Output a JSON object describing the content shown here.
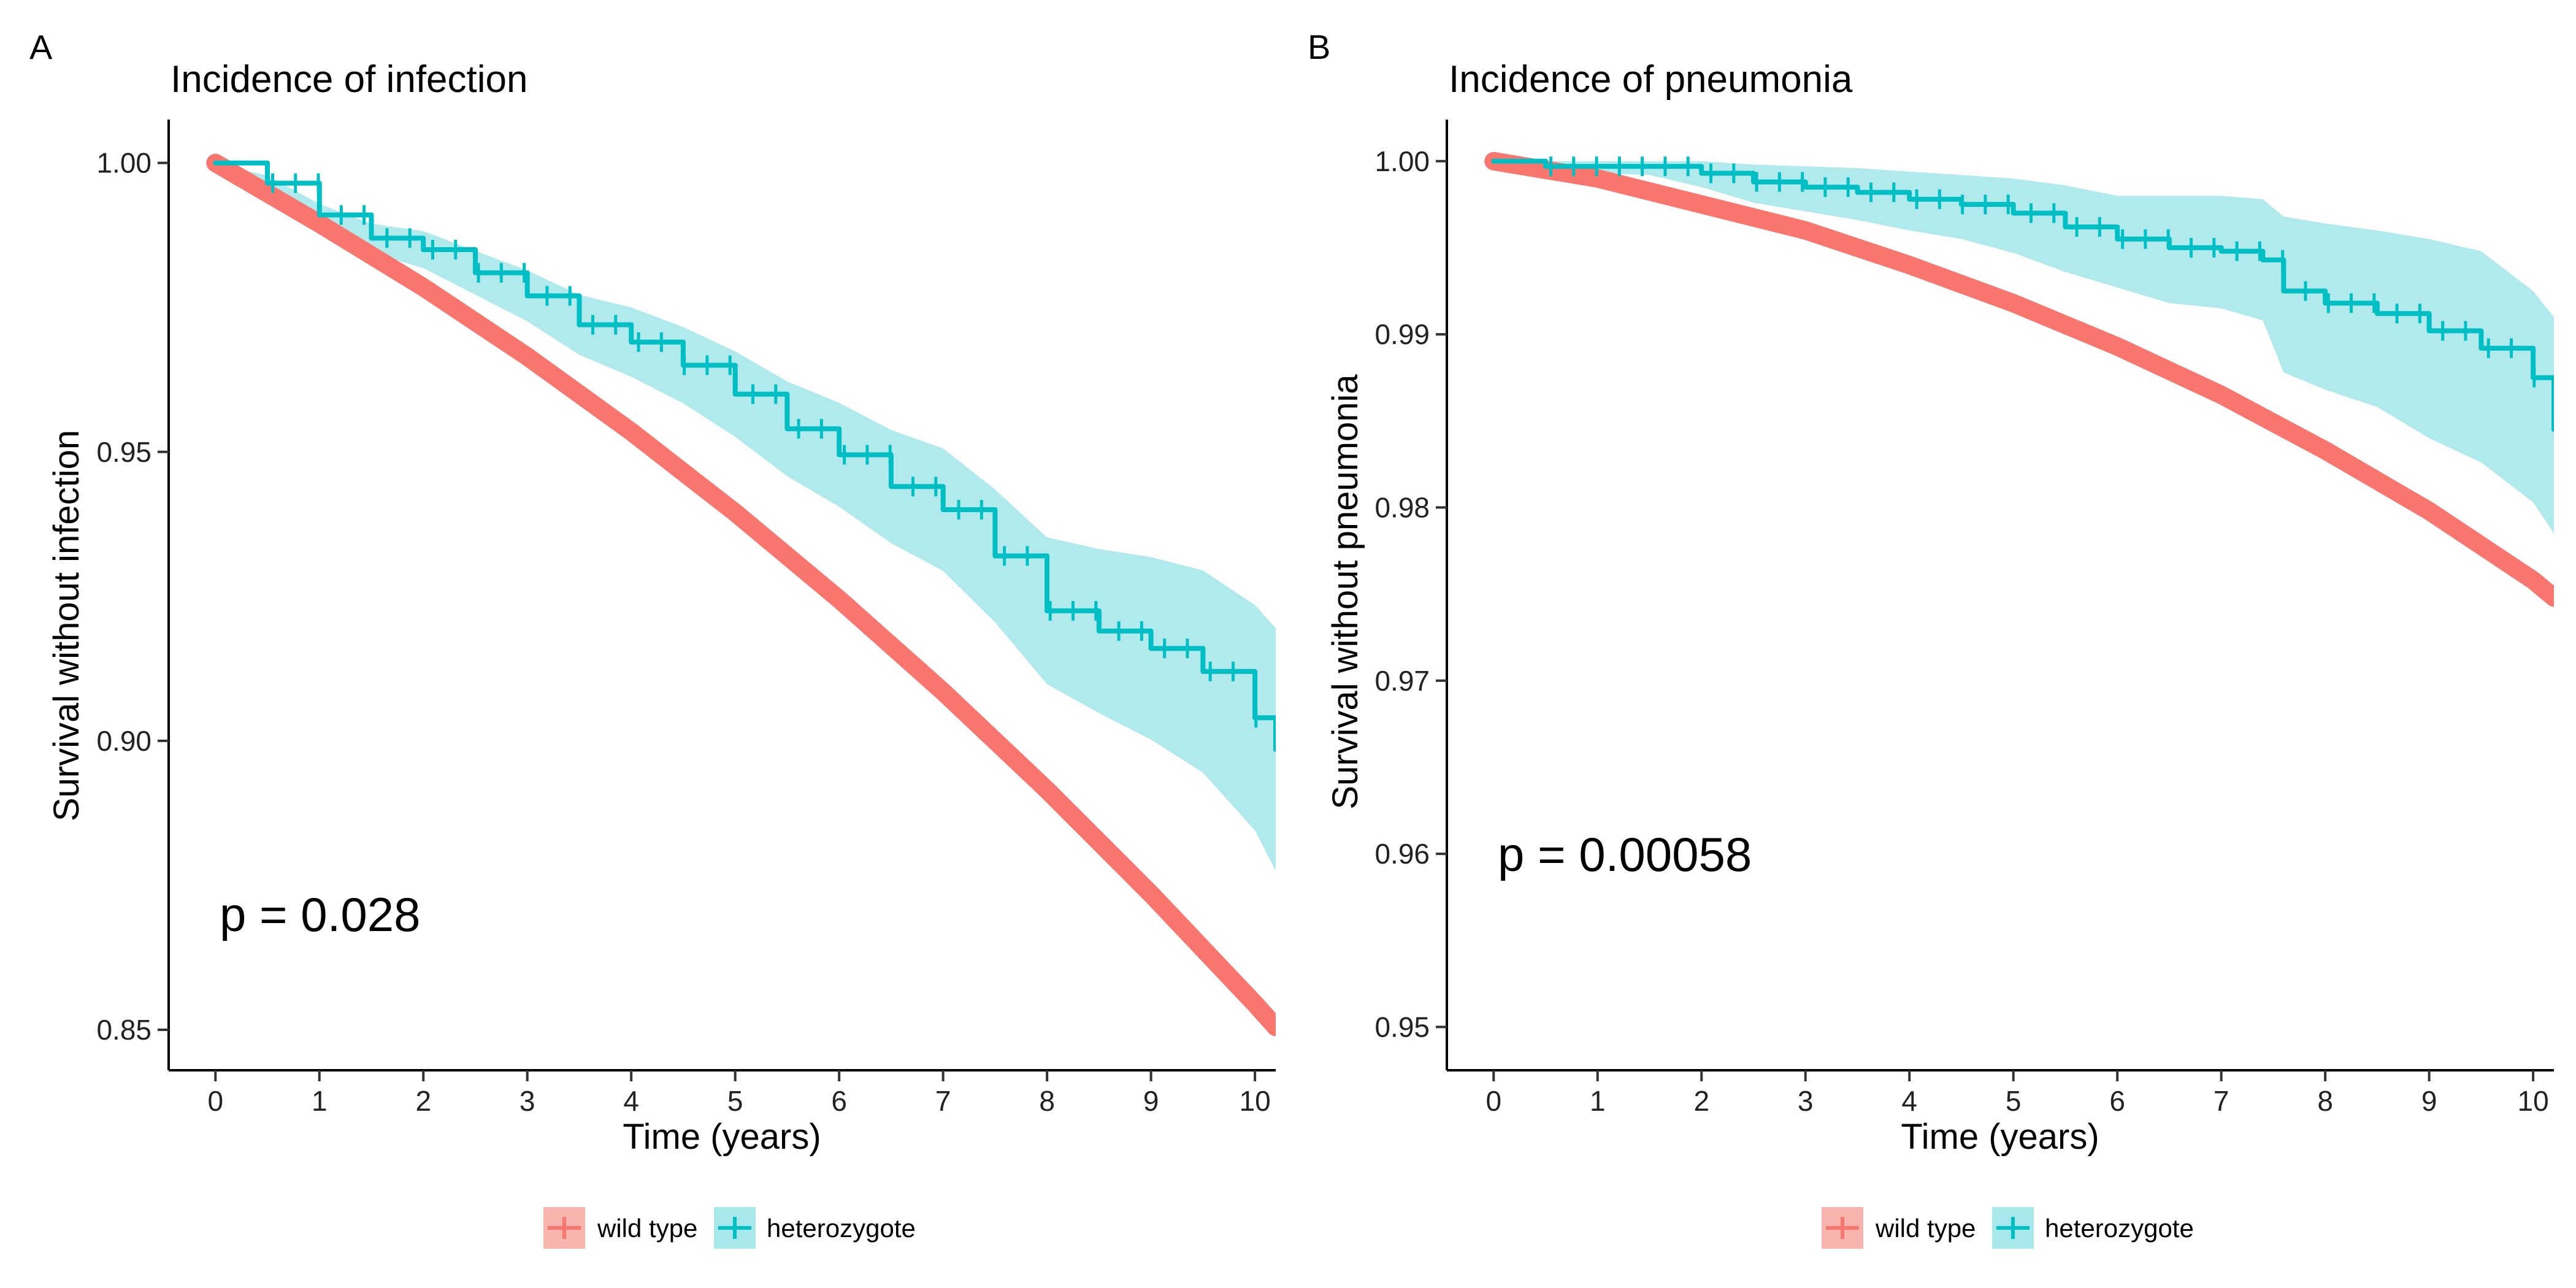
{
  "figure": {
    "panels": [
      {
        "letter": "A",
        "title": "Incidence of infection",
        "xlabel": "Time (years)",
        "ylabel": "Survival without infection",
        "pvalue_text": "p = 0.028",
        "legend": [
          {
            "label": "wild type"
          },
          {
            "label": "heterozygote"
          }
        ]
      },
      {
        "letter": "B",
        "title": "Incidence of pneumonia",
        "xlabel": "Time (years)",
        "ylabel": "Survival without pneumonia",
        "pvalue_text": "p = 0.00058",
        "legend": [
          {
            "label": "wild type"
          },
          {
            "label": "heterozygote"
          }
        ]
      }
    ]
  },
  "colors": {
    "wild_type": "#F8766D",
    "heterozygote": "#00BFC4",
    "wild_type_band": "#F8B4AE",
    "heterozygote_band": "#A8E8EA"
  },
  "chart_data": [
    {
      "type": "line",
      "title": "Incidence of infection",
      "xlabel": "Time (years)",
      "ylabel": "Survival without infection",
      "xlim": [
        -0.45,
        10.2
      ],
      "ylim": [
        0.843,
        1.0075
      ],
      "xticks": [
        0,
        1,
        2,
        3,
        4,
        5,
        6,
        7,
        8,
        9,
        10
      ],
      "yticks": [
        0.85,
        0.9,
        0.95,
        1.0
      ],
      "ytick_labels": [
        "0.85",
        "0.90",
        "0.95",
        "1.00"
      ],
      "annotation": "p = 0.028",
      "legend_position": "bottom",
      "series": [
        {
          "name": "wild type",
          "color": "#F8766D",
          "x": [
            0,
            1,
            2,
            3,
            4,
            5,
            6,
            7,
            8,
            9,
            10,
            10.2
          ],
          "y": [
            1.0,
            0.9895,
            0.9785,
            0.9665,
            0.9535,
            0.9395,
            0.9245,
            0.9085,
            0.8915,
            0.8735,
            0.8545,
            0.8505
          ],
          "lower": [
            0.9992,
            0.9887,
            0.9777,
            0.9657,
            0.9527,
            0.9387,
            0.9237,
            0.9077,
            0.8905,
            0.8725,
            0.8533,
            0.8493
          ],
          "upper": [
            1.0008,
            0.9903,
            0.9793,
            0.9673,
            0.9543,
            0.9403,
            0.9253,
            0.9093,
            0.8925,
            0.8745,
            0.8557,
            0.8517
          ]
        },
        {
          "name": "heterozygote",
          "color": "#00BFC4",
          "x": [
            0,
            0.5,
            1,
            1.5,
            2,
            2.5,
            3,
            3.5,
            4,
            4.5,
            5,
            5.5,
            6,
            6.5,
            7,
            7.5,
            8,
            8.5,
            9,
            9.5,
            10,
            10.2
          ],
          "y": [
            1.0,
            0.9965,
            0.991,
            0.987,
            0.985,
            0.981,
            0.977,
            0.972,
            0.969,
            0.965,
            0.96,
            0.954,
            0.9495,
            0.944,
            0.94,
            0.932,
            0.9225,
            0.919,
            0.916,
            0.912,
            0.904,
            0.8985
          ],
          "lower": [
            1.0,
            0.9952,
            0.9891,
            0.9845,
            0.9818,
            0.9772,
            0.9726,
            0.9668,
            0.963,
            0.9584,
            0.9526,
            0.9458,
            0.9405,
            0.9342,
            0.9294,
            0.9205,
            0.9098,
            0.9048,
            0.9002,
            0.8945,
            0.8845,
            0.8775
          ],
          "upper": [
            1.0,
            0.9978,
            0.9929,
            0.9895,
            0.9882,
            0.9848,
            0.9814,
            0.9772,
            0.975,
            0.9716,
            0.9674,
            0.9622,
            0.9585,
            0.9538,
            0.9506,
            0.9435,
            0.9352,
            0.9332,
            0.9318,
            0.9295,
            0.9235,
            0.9195
          ]
        }
      ]
    },
    {
      "type": "line",
      "title": "Incidence of pneumonia",
      "xlabel": "Time (years)",
      "ylabel": "Survival without pneumonia",
      "xlim": [
        -0.45,
        10.2
      ],
      "ylim": [
        0.9475,
        1.0024
      ],
      "xticks": [
        0,
        1,
        2,
        3,
        4,
        5,
        6,
        7,
        8,
        9,
        10
      ],
      "yticks": [
        0.95,
        0.96,
        0.97,
        0.98,
        0.99,
        1.0
      ],
      "ytick_labels": [
        "0.95",
        "0.96",
        "0.97",
        "0.98",
        "0.99",
        "1.00"
      ],
      "annotation": "p = 0.00058",
      "legend_position": "bottom",
      "series": [
        {
          "name": "wild type",
          "color": "#F8766D",
          "x": [
            0,
            1,
            2,
            3,
            4,
            5,
            6,
            7,
            8,
            9,
            10,
            10.2
          ],
          "y": [
            1.0,
            0.999,
            0.9975,
            0.996,
            0.994,
            0.9918,
            0.9893,
            0.9865,
            0.9833,
            0.9798,
            0.9758,
            0.9748
          ],
          "lower": [
            0.9997,
            0.9987,
            0.9972,
            0.9957,
            0.9937,
            0.9915,
            0.989,
            0.9862,
            0.983,
            0.9795,
            0.9755,
            0.9745
          ],
          "upper": [
            1.0003,
            0.9993,
            0.9978,
            0.9963,
            0.9943,
            0.9921,
            0.9896,
            0.9868,
            0.9836,
            0.9801,
            0.9761,
            0.9751
          ]
        },
        {
          "name": "heterozygote",
          "color": "#00BFC4",
          "x": [
            0,
            0.5,
            1,
            1.5,
            2,
            2.5,
            3,
            3.5,
            4,
            4.5,
            5,
            5.5,
            6,
            6.5,
            7,
            7.4,
            7.6,
            8,
            8.5,
            9,
            9.5,
            10,
            10.2
          ],
          "y": [
            1.0,
            0.9997,
            0.9997,
            0.9997,
            0.9993,
            0.9988,
            0.9985,
            0.9982,
            0.9978,
            0.9975,
            0.997,
            0.9962,
            0.9955,
            0.995,
            0.9948,
            0.9943,
            0.9925,
            0.9918,
            0.9912,
            0.9902,
            0.9892,
            0.9875,
            0.9845
          ],
          "lower": [
            1.0,
            0.9993,
            0.9993,
            0.9992,
            0.9985,
            0.9976,
            0.9971,
            0.9966,
            0.996,
            0.9955,
            0.9947,
            0.9936,
            0.9927,
            0.9918,
            0.9915,
            0.9908,
            0.9878,
            0.9868,
            0.9858,
            0.984,
            0.9826,
            0.9803,
            0.9785
          ],
          "upper": [
            1.0,
            1.0,
            1.0,
            1.0,
            1.0,
            0.9998,
            0.9997,
            0.9996,
            0.9994,
            0.9992,
            0.999,
            0.9986,
            0.998,
            0.998,
            0.998,
            0.9978,
            0.9968,
            0.9964,
            0.996,
            0.9955,
            0.9948,
            0.9925,
            0.991
          ]
        }
      ]
    }
  ]
}
